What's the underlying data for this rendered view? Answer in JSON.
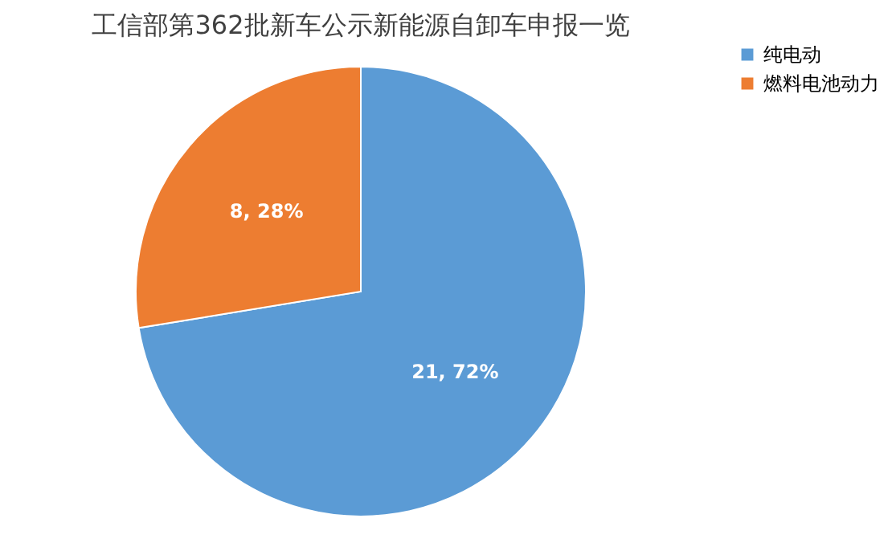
{
  "chart_data": {
    "type": "pie",
    "title": "工信部第362批新车公示新能源自卸车申报一览",
    "categories": [
      "纯电动",
      "燃料电池动力"
    ],
    "values": [
      21,
      8
    ],
    "colors": [
      "#5b9bd5",
      "#ed7d31"
    ],
    "value_labels": [
      "21, 72%",
      "8, 28%"
    ],
    "legend": "right"
  }
}
